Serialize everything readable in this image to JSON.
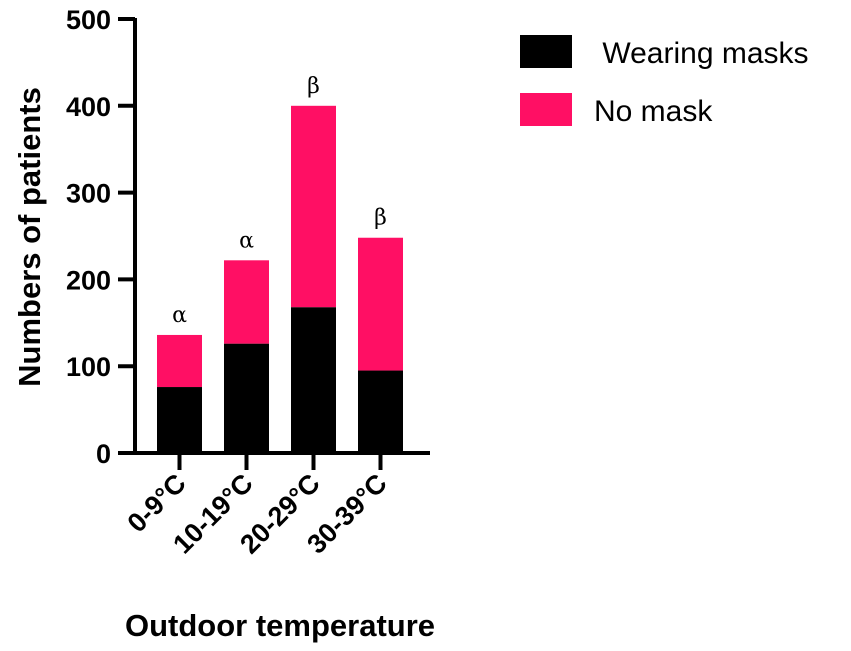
{
  "chart_data": {
    "type": "bar",
    "stacked": true,
    "categories": [
      "0-9°C",
      "10-19°C",
      "20-29°C",
      "30-39°C"
    ],
    "series": [
      {
        "name": " Wearing masks",
        "color": "#000000",
        "values": [
          76,
          126,
          168,
          95
        ]
      },
      {
        "name": "No mask",
        "color": "#ff0f64",
        "values": [
          60,
          96,
          232,
          153
        ]
      }
    ],
    "annotations": [
      "α",
      "α",
      "β",
      "β"
    ],
    "xlabel": "Outdoor temperature",
    "ylabel": "Numbers of patients",
    "ylim": [
      0,
      500
    ],
    "yticks": [
      0,
      100,
      200,
      300,
      400,
      500
    ],
    "grid": false,
    "legend_position": "top-right"
  }
}
